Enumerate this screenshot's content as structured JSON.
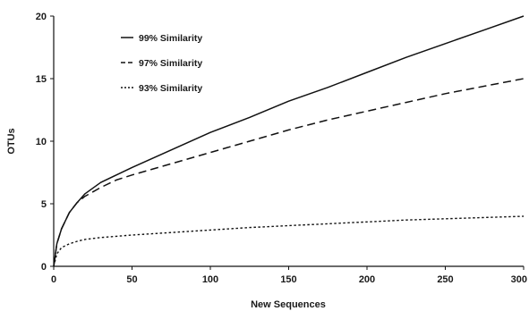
{
  "chart_data": {
    "type": "line",
    "title": "",
    "xlabel": "New Sequences",
    "ylabel": "OTUs",
    "xlim": [
      0,
      300
    ],
    "ylim": [
      0,
      20
    ],
    "x_ticks": [
      0,
      50,
      100,
      150,
      200,
      250,
      300
    ],
    "y_ticks": [
      0,
      5,
      10,
      15,
      20
    ],
    "x_tick_labels": [
      "0",
      "50",
      "100",
      "150",
      "200",
      "250",
      "300"
    ],
    "y_tick_labels": [
      "0",
      "5",
      "10",
      "15",
      "20"
    ],
    "grid": false,
    "legend_position": "top-left",
    "series": [
      {
        "name": "99% Similarity",
        "style": "solid",
        "color": "#111111",
        "x": [
          0,
          2,
          5,
          10,
          15,
          20,
          30,
          40,
          50,
          75,
          100,
          125,
          150,
          175,
          200,
          225,
          250,
          275,
          300
        ],
        "y": [
          0,
          1.8,
          3.0,
          4.3,
          5.1,
          5.8,
          6.7,
          7.3,
          7.9,
          9.3,
          10.7,
          11.9,
          13.2,
          14.3,
          15.5,
          16.7,
          17.8,
          18.9,
          20.0
        ]
      },
      {
        "name": "97% Similarity",
        "style": "dashed",
        "color": "#111111",
        "x": [
          0,
          2,
          5,
          10,
          15,
          20,
          30,
          40,
          50,
          75,
          100,
          125,
          150,
          175,
          200,
          225,
          250,
          275,
          300
        ],
        "y": [
          0,
          1.8,
          3.0,
          4.3,
          5.1,
          5.6,
          6.3,
          6.9,
          7.3,
          8.2,
          9.1,
          10.0,
          10.9,
          11.7,
          12.4,
          13.1,
          13.8,
          14.4,
          15.0
        ]
      },
      {
        "name": "93% Similarity",
        "style": "dotted",
        "color": "#111111",
        "x": [
          0,
          2,
          5,
          10,
          15,
          20,
          30,
          40,
          50,
          75,
          100,
          125,
          150,
          175,
          200,
          225,
          250,
          275,
          300
        ],
        "y": [
          0,
          1.0,
          1.5,
          1.8,
          2.0,
          2.15,
          2.3,
          2.4,
          2.5,
          2.7,
          2.9,
          3.1,
          3.25,
          3.4,
          3.55,
          3.7,
          3.8,
          3.9,
          4.0
        ]
      }
    ]
  }
}
